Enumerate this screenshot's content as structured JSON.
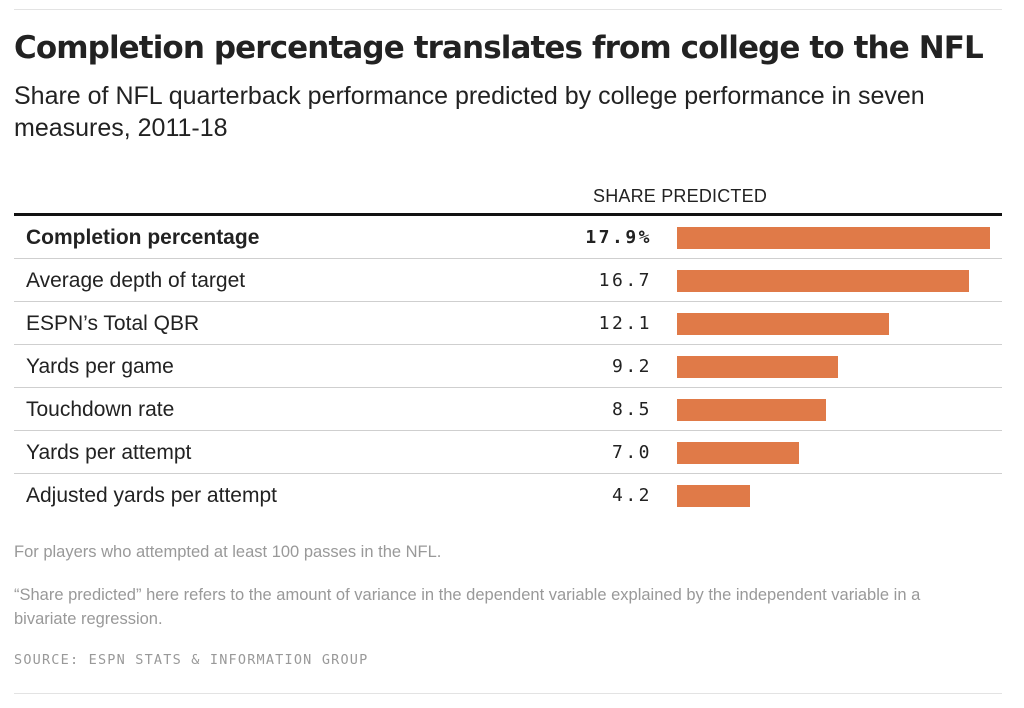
{
  "chart_data": {
    "type": "bar",
    "title": "Completion percentage translates from college to the NFL",
    "subtitle": "Share of NFL quarterback performance predicted by college performance in seven measures, 2011-18",
    "column_header": "SHARE PREDICTED",
    "categories": [
      "Completion percentage",
      "Average depth of target",
      "ESPN’s Total QBR",
      "Yards per game",
      "Touchdown rate",
      "Yards per attempt",
      "Adjusted yards per attempt"
    ],
    "values": [
      17.9,
      16.7,
      12.1,
      9.2,
      8.5,
      7.0,
      4.2
    ],
    "value_labels": [
      "17.9%",
      "16.7",
      "12.1",
      "9.2",
      "8.5",
      "7.0",
      "4.2"
    ],
    "highlight_index": 0,
    "bar_color": "#e07a48",
    "xlim": [
      0,
      17.9
    ]
  },
  "notes": [
    "For players who attempted at least 100 passes in the NFL.",
    "“Share predicted” here refers to the amount of variance in the dependent variable explained by the independent variable in a bivariate regression."
  ],
  "source": "SOURCE: ESPN STATS & INFORMATION GROUP"
}
